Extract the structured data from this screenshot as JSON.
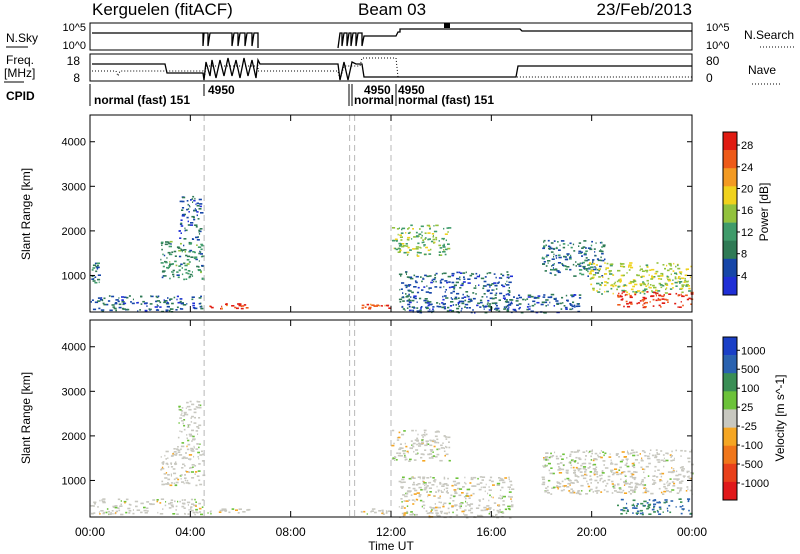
{
  "header": {
    "site": "Kerguelen (fitACF)",
    "beam": "Beam 03",
    "date": "23/Feb/2013"
  },
  "meta_panels": {
    "nsky": {
      "label": "N.Sky",
      "tick_top": "10^5",
      "tick_bottom": "10^0",
      "right_label": "N.Search",
      "right_tick_top": "10^5",
      "right_tick_bottom": "10^0"
    },
    "freq": {
      "label_line1": "Freq.",
      "label_line2": "[MHz]",
      "tick_top": "18",
      "tick_bottom": "8",
      "right_label": "Nave",
      "right_tick_top": "80",
      "right_tick_bottom": "0"
    },
    "cpid": {
      "label": "CPID",
      "annotations": [
        "normal (fast) 151",
        "4950",
        "normal",
        "4950",
        "4950",
        "normal (fast) 151"
      ]
    }
  },
  "colors": {
    "power_scale": [
      "#1f2fd6",
      "#1646a8",
      "#2f7a55",
      "#3f9b6a",
      "#92c23d",
      "#f0d21d",
      "#f39a22",
      "#ee5a18",
      "#e01b12"
    ],
    "velocity_scale": [
      "#1a3fc6",
      "#2a62b0",
      "#3a8e55",
      "#6cc23a",
      "#c8c8c0",
      "#f5a623",
      "#f0761a",
      "#e8401a",
      "#e0181a"
    ],
    "grid_dash": "#b8b8b8"
  },
  "chart_data": [
    {
      "type": "heatmap",
      "title": "",
      "xlabel": "Time UT",
      "ylabel": "Slant Range [km]",
      "xlim": [
        0,
        24
      ],
      "ylim": [
        180,
        4600
      ],
      "x_ticks": [
        "00:00",
        "04:00",
        "08:00",
        "12:00",
        "16:00",
        "20:00",
        "00:00"
      ],
      "y_ticks": [
        "1000",
        "2000",
        "3000",
        "4000"
      ],
      "y_tick_values": [
        1000,
        2000,
        3000,
        4000
      ],
      "colorbar": {
        "label": "Power [dB]",
        "ticks": [
          "28",
          "24",
          "20",
          "16",
          "12",
          "8",
          "4"
        ],
        "range": [
          0,
          30
        ]
      },
      "regions": [
        {
          "t0": 0.0,
          "t1": 4.5,
          "r0": 200,
          "r1": 560,
          "level": 6
        },
        {
          "t0": 0.0,
          "t1": 0.35,
          "r0": 850,
          "r1": 1300,
          "level": 8
        },
        {
          "t0": 2.8,
          "t1": 4.5,
          "r0": 900,
          "r1": 1800,
          "level": 10
        },
        {
          "t0": 3.5,
          "t1": 4.4,
          "r0": 1800,
          "r1": 2800,
          "level": 6
        },
        {
          "t0": 4.6,
          "t1": 6.3,
          "r0": 260,
          "r1": 380,
          "level": 26
        },
        {
          "t0": 10.6,
          "t1": 11.9,
          "r0": 260,
          "r1": 380,
          "level": 26
        },
        {
          "t0": 12.0,
          "t1": 14.3,
          "r0": 1450,
          "r1": 2150,
          "level": 14
        },
        {
          "t0": 12.3,
          "t1": 16.8,
          "r0": 180,
          "r1": 1100,
          "level": 6
        },
        {
          "t0": 16.5,
          "t1": 19.5,
          "r0": 180,
          "r1": 600,
          "level": 6
        },
        {
          "t0": 18.0,
          "t1": 20.5,
          "r0": 1000,
          "r1": 1800,
          "level": 8
        },
        {
          "t0": 19.8,
          "t1": 24.0,
          "r0": 600,
          "r1": 1300,
          "level": 16
        },
        {
          "t0": 21.0,
          "t1": 24.0,
          "r0": 300,
          "r1": 650,
          "level": 28
        }
      ]
    },
    {
      "type": "heatmap",
      "title": "",
      "xlabel": "Time UT",
      "ylabel": "Slant Range [km]",
      "xlim": [
        0,
        24
      ],
      "ylim": [
        180,
        4600
      ],
      "x_ticks": [
        "00:00",
        "04:00",
        "08:00",
        "12:00",
        "16:00",
        "20:00",
        "00:00"
      ],
      "y_ticks": [
        "1000",
        "2000",
        "3000",
        "4000"
      ],
      "y_tick_values": [
        1000,
        2000,
        3000,
        4000
      ],
      "colorbar": {
        "label": "Velocity [m s^-1]",
        "ticks": [
          "1000",
          "500",
          "100",
          "25",
          "-25",
          "-100",
          "-500",
          "-1000"
        ],
        "range": [
          -1000,
          1000
        ]
      },
      "regions": [
        {
          "t0": 0.0,
          "t1": 4.5,
          "r0": 250,
          "r1": 600,
          "level": 2
        },
        {
          "t0": 2.8,
          "t1": 4.5,
          "r0": 900,
          "r1": 1800,
          "level": 0
        },
        {
          "t0": 3.5,
          "t1": 4.4,
          "r0": 1800,
          "r1": 2800,
          "level": 5
        },
        {
          "t0": 4.6,
          "t1": 6.3,
          "r0": 260,
          "r1": 380,
          "level": 0
        },
        {
          "t0": 10.6,
          "t1": 11.9,
          "r0": 260,
          "r1": 380,
          "level": 0
        },
        {
          "t0": 12.0,
          "t1": 14.3,
          "r0": 1450,
          "r1": 2150,
          "level": 0
        },
        {
          "t0": 12.3,
          "t1": 16.8,
          "r0": 180,
          "r1": 1100,
          "level": 0
        },
        {
          "t0": 18.0,
          "t1": 24.0,
          "r0": 700,
          "r1": 1700,
          "level": 0
        },
        {
          "t0": 21.0,
          "t1": 24.0,
          "r0": 250,
          "r1": 600,
          "level": 100
        }
      ]
    }
  ]
}
